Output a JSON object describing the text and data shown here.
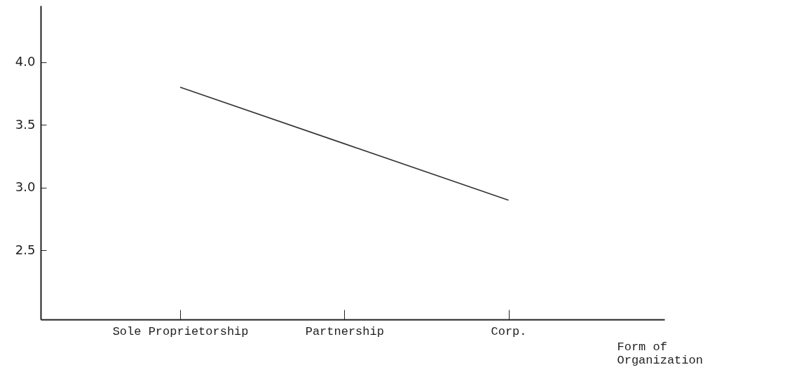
{
  "chart_data": {
    "type": "line",
    "xlabel": "Form of\nOrganization",
    "categories": [
      "Sole Proprietorship",
      "Partnership",
      "Corp."
    ],
    "series": [
      {
        "color": "#333333",
        "values": [
          3.8,
          3.35,
          2.9
        ]
      }
    ],
    "ylim": [
      1.95,
      4.45
    ],
    "yticks": [
      {
        "value": 2.5,
        "label": "2.5"
      },
      {
        "value": 3,
        "label": "3.0"
      },
      {
        "value": 3.5,
        "label": "3.5"
      },
      {
        "value": 4,
        "label": "4.0"
      }
    ],
    "grid": false,
    "marker": "none",
    "line_style": "solid"
  }
}
